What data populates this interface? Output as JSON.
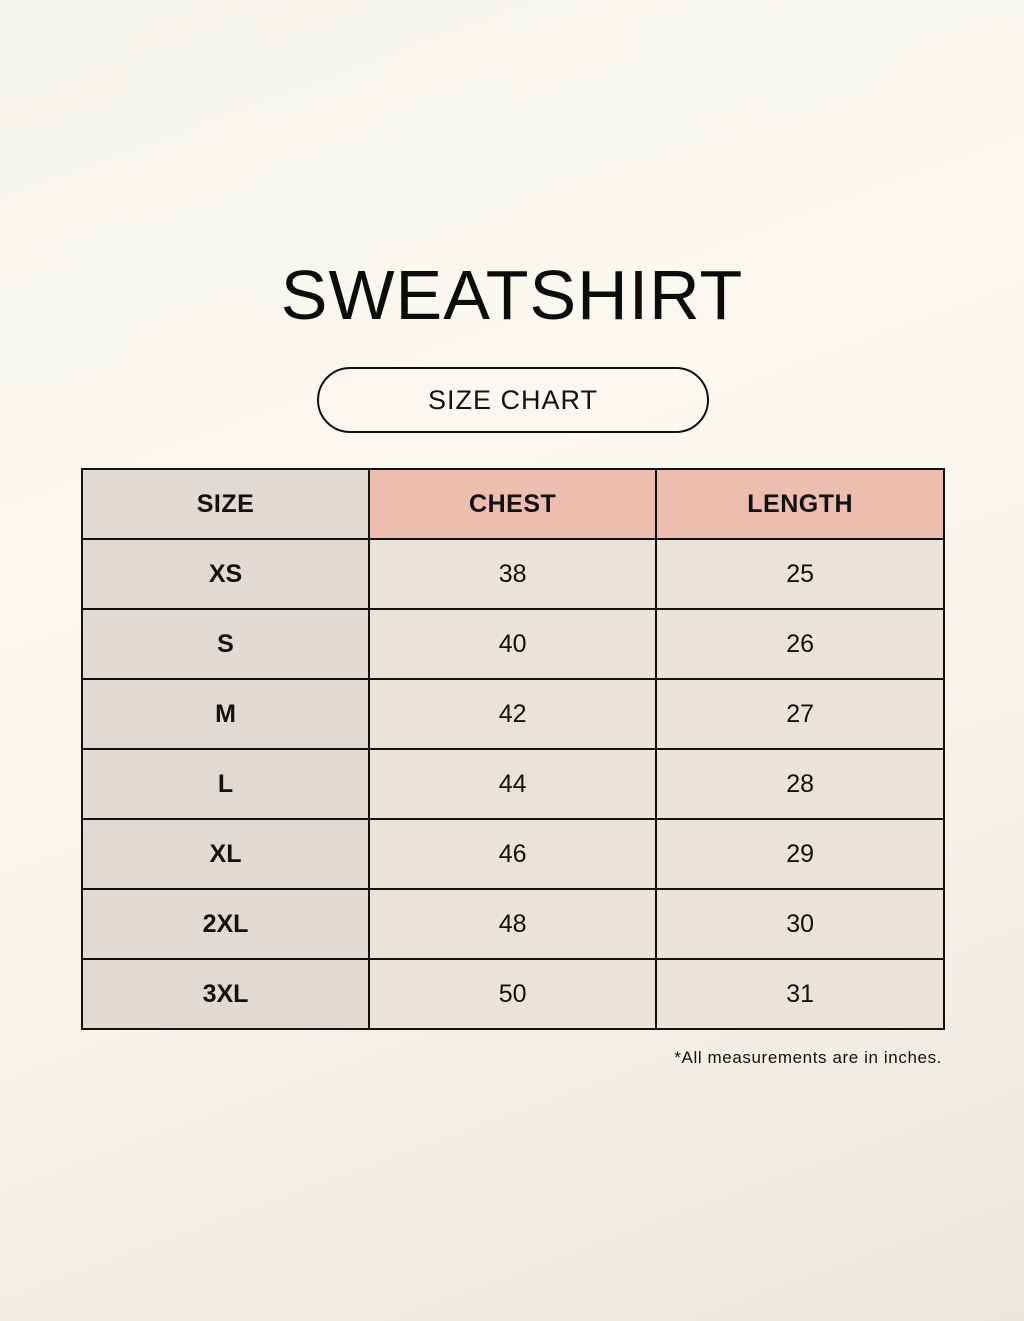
{
  "title": "SWEATSHIRT",
  "subtitle": "SIZE CHART",
  "table": {
    "headers": [
      "SIZE",
      "CHEST",
      "LENGTH"
    ],
    "rows": [
      {
        "size": "XS",
        "chest": "38",
        "length": "25"
      },
      {
        "size": "S",
        "chest": "40",
        "length": "26"
      },
      {
        "size": "M",
        "chest": "42",
        "length": "27"
      },
      {
        "size": "L",
        "chest": "44",
        "length": "28"
      },
      {
        "size": "XL",
        "chest": "46",
        "length": "29"
      },
      {
        "size": "2XL",
        "chest": "48",
        "length": "30"
      },
      {
        "size": "3XL",
        "chest": "50",
        "length": "31"
      }
    ]
  },
  "note": "*All measurements are in inches.",
  "colors": {
    "size_column": "#e0d9d4",
    "header_accent": "#edbdaf",
    "cell": "#eae3da"
  }
}
